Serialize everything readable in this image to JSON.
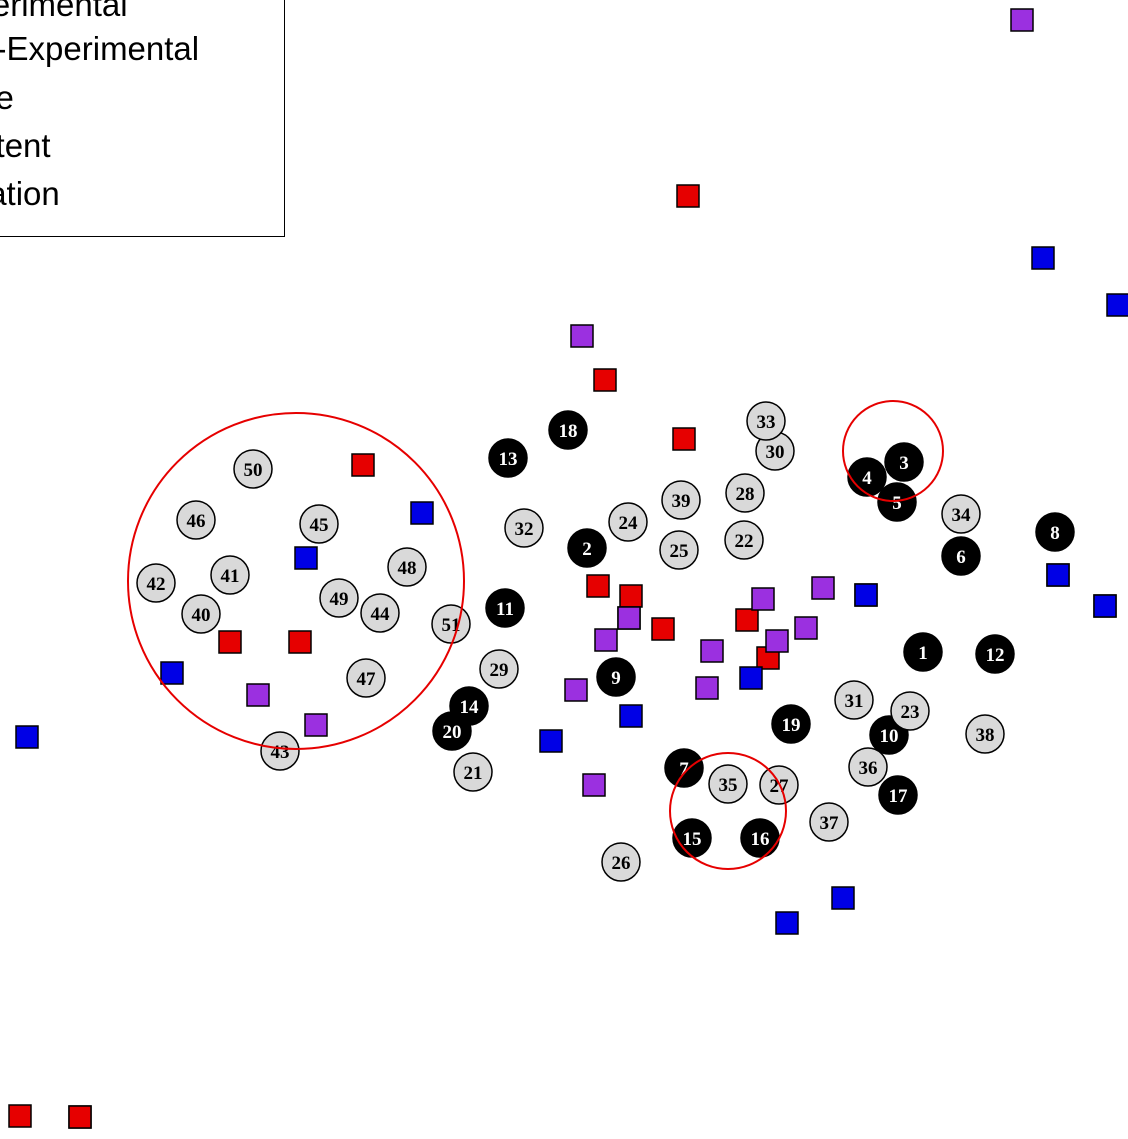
{
  "legend": {
    "items": [
      "Experimental",
      "Non-Experimental",
      "Node",
      "Content",
      "Location"
    ]
  },
  "colors": {
    "red": "#e60000",
    "purple": "#9b30e0",
    "blue": "#0000e6",
    "node_black": "#000000",
    "node_light": "#d9d9d9",
    "cluster_circle": "#e60000"
  },
  "nodes": [
    {
      "label": "1",
      "style": "dark"
    },
    {
      "label": "2",
      "style": "dark"
    },
    {
      "label": "3",
      "style": "dark"
    },
    {
      "label": "4",
      "style": "dark"
    },
    {
      "label": "5",
      "style": "dark"
    },
    {
      "label": "6",
      "style": "dark"
    },
    {
      "label": "7",
      "style": "dark"
    },
    {
      "label": "8",
      "style": "dark"
    },
    {
      "label": "9",
      "style": "dark"
    },
    {
      "label": "10",
      "style": "dark"
    },
    {
      "label": "11",
      "style": "dark"
    },
    {
      "label": "12",
      "style": "dark"
    },
    {
      "label": "13",
      "style": "dark"
    },
    {
      "label": "14",
      "style": "dark"
    },
    {
      "label": "15",
      "style": "dark"
    },
    {
      "label": "16",
      "style": "dark"
    },
    {
      "label": "17",
      "style": "dark"
    },
    {
      "label": "18",
      "style": "dark"
    },
    {
      "label": "19",
      "style": "dark"
    },
    {
      "label": "20",
      "style": "dark"
    },
    {
      "label": "21",
      "style": "light"
    },
    {
      "label": "22",
      "style": "light"
    },
    {
      "label": "23",
      "style": "light"
    },
    {
      "label": "24",
      "style": "light"
    },
    {
      "label": "25",
      "style": "light"
    },
    {
      "label": "26",
      "style": "light"
    },
    {
      "label": "27",
      "style": "light"
    },
    {
      "label": "28",
      "style": "light"
    },
    {
      "label": "29",
      "style": "light"
    },
    {
      "label": "30",
      "style": "light"
    },
    {
      "label": "31",
      "style": "light"
    },
    {
      "label": "32",
      "style": "light"
    },
    {
      "label": "33",
      "style": "light"
    },
    {
      "label": "34",
      "style": "light"
    },
    {
      "label": "35",
      "style": "light"
    },
    {
      "label": "36",
      "style": "light"
    },
    {
      "label": "37",
      "style": "light"
    },
    {
      "label": "38",
      "style": "light"
    },
    {
      "label": "39",
      "style": "light"
    },
    {
      "label": "40",
      "style": "light"
    },
    {
      "label": "41",
      "style": "light"
    },
    {
      "label": "42",
      "style": "light"
    },
    {
      "label": "43",
      "style": "light"
    },
    {
      "label": "44",
      "style": "light"
    },
    {
      "label": "45",
      "style": "light"
    },
    {
      "label": "46",
      "style": "light"
    },
    {
      "label": "47",
      "style": "light"
    },
    {
      "label": "48",
      "style": "light"
    },
    {
      "label": "49",
      "style": "light"
    },
    {
      "label": "50",
      "style": "light"
    },
    {
      "label": "51",
      "style": "light"
    }
  ],
  "squares": {
    "red_count": 14,
    "purple_count": 15,
    "blue_count": 17
  }
}
